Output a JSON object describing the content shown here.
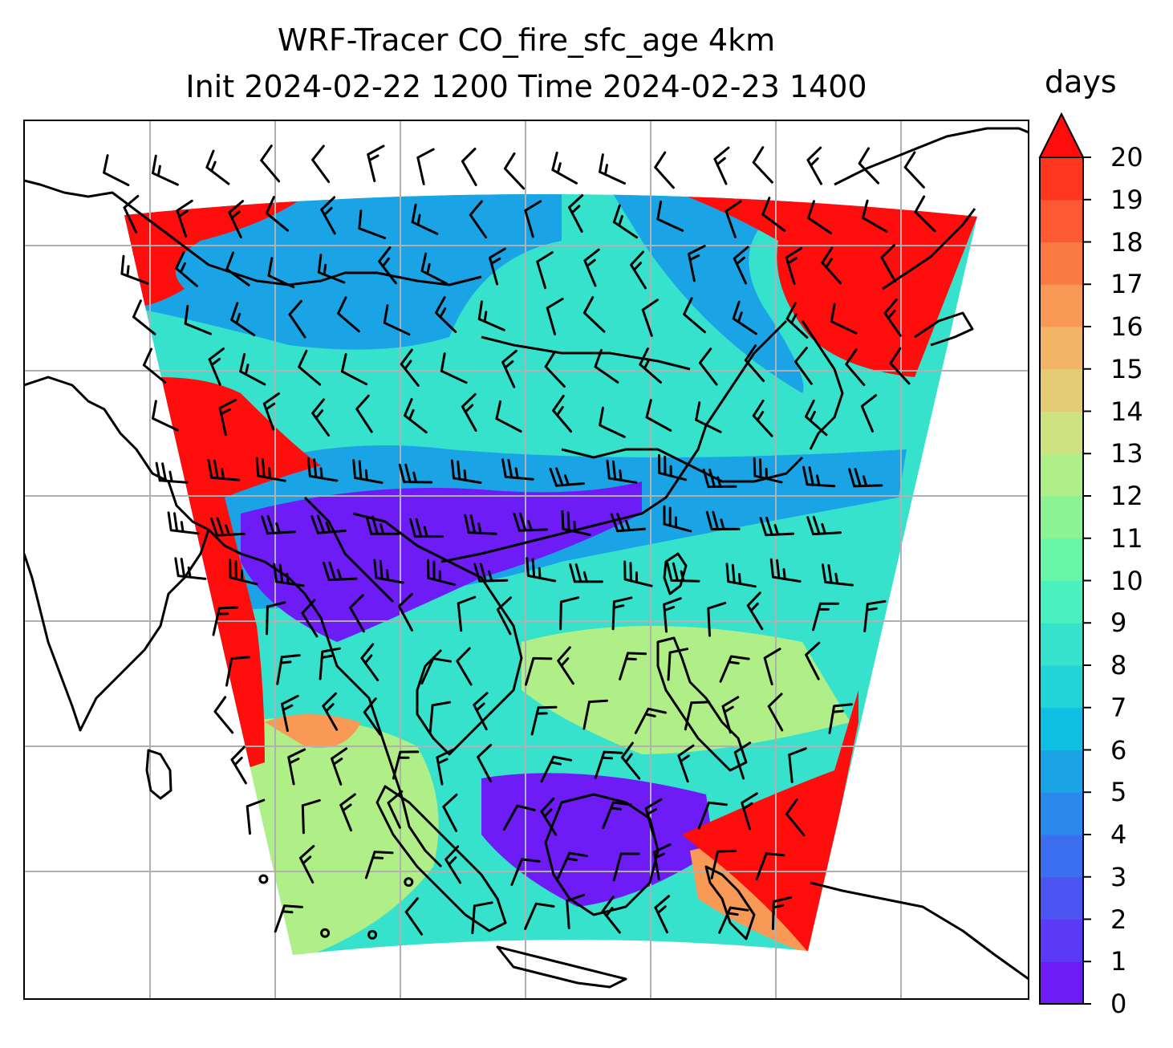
{
  "title": {
    "line1": "WRF-Tracer CO_fire_sfc_age 4km",
    "line2": "Init 2024-02-22 1200 Time 2024-02-23 1400"
  },
  "colorbar": {
    "label": "days",
    "ticks": [
      "0",
      "1",
      "2",
      "3",
      "4",
      "5",
      "6",
      "7",
      "8",
      "9",
      "10",
      "11",
      "12",
      "13",
      "14",
      "15",
      "16",
      "17",
      "18",
      "19",
      "20"
    ],
    "extend": "max",
    "colors": [
      "#6e1cf5",
      "#5a3af5",
      "#4a55f2",
      "#3b6ff0",
      "#2c89ec",
      "#1aa4e6",
      "#0fbfe2",
      "#22d4d8",
      "#36e2cc",
      "#4af0bd",
      "#68f5a8",
      "#8cf296",
      "#b0ee88",
      "#cfe281",
      "#e3cc75",
      "#f2b466",
      "#f89a55",
      "#fb7a44",
      "#fd5933",
      "#fe3620",
      "#ff0d0d"
    ]
  },
  "map": {
    "gridlines": true,
    "features": [
      "coastlines",
      "wind-barbs",
      "calm-circles"
    ],
    "zones": {
      "fire-red": "#ff0d0d",
      "old-orange": "#f89a55",
      "aged-green": "#b0ee88",
      "mid-cyan": "#36e2cc",
      "young-blue": "#1aa4e6",
      "fresh-purple": "#6e1cf5"
    }
  }
}
